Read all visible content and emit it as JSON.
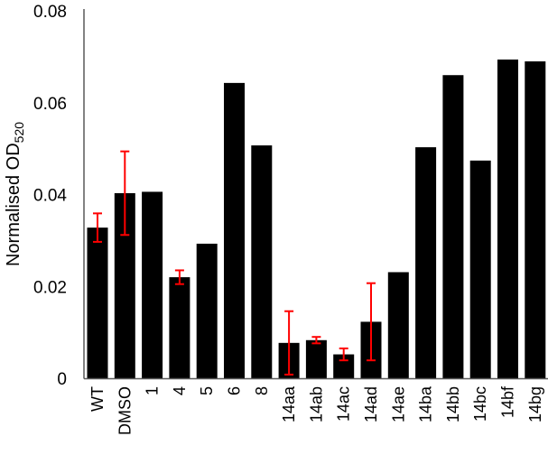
{
  "chart_data": {
    "type": "bar",
    "title": "",
    "xlabel": "",
    "ylabel": "Normalised OD",
    "ylabel_subscript": "520",
    "ylim": [
      0,
      0.08
    ],
    "yticks": [
      "0",
      "0.02",
      "0.04",
      "0.06",
      "0.08"
    ],
    "ytick_values": [
      0,
      0.02,
      0.04,
      0.06,
      0.08
    ],
    "grid": false,
    "bar_color": "#000000",
    "error_color": "#ff0000",
    "categories": [
      "WT",
      "DMSO",
      "1",
      "4",
      "5",
      "6",
      "8",
      "14aa",
      "14ab",
      "14ac",
      "14ad",
      "14ae",
      "14ba",
      "14bb",
      "14bc",
      "14bf",
      "14bg"
    ],
    "values": [
      0.0328,
      0.0403,
      0.0406,
      0.022,
      0.0293,
      0.0643,
      0.0507,
      0.0077,
      0.0083,
      0.0052,
      0.0123,
      0.0231,
      0.0503,
      0.066,
      0.0474,
      0.0694,
      0.069
    ],
    "errors": [
      0.0031,
      0.0091,
      null,
      0.0015,
      null,
      null,
      null,
      0.0069,
      0.0007,
      0.0013,
      0.0084,
      null,
      null,
      null,
      null,
      null,
      null
    ]
  }
}
